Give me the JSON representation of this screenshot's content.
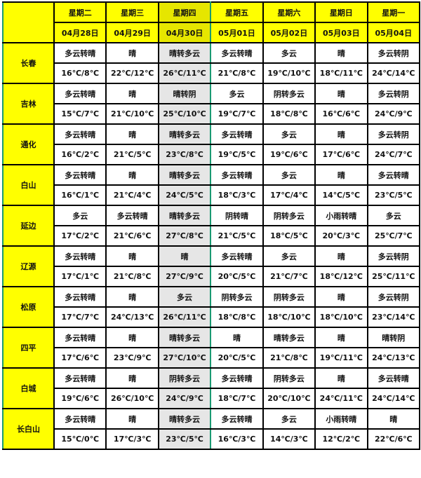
{
  "highlight_color": "#e6e600",
  "weekdays": [
    "星期二",
    "星期三",
    "星期四",
    "星期五",
    "星期六",
    "星期日",
    "星期一"
  ],
  "dates": [
    "04月28日",
    "04月29日",
    "04月30日",
    "05月01日",
    "05月02日",
    "05月03日",
    "05月04日"
  ],
  "highlighted_column": 2,
  "cities": [
    {
      "name": "长春",
      "weather": [
        "多云转晴",
        "晴",
        "晴转多云",
        "多云转晴",
        "多云",
        "晴",
        "多云转阴"
      ],
      "temps": [
        "16℃/8℃",
        "22℃/12℃",
        "26℃/11℃",
        "21℃/8℃",
        "19℃/10℃",
        "18℃/11℃",
        "24℃/14℃"
      ]
    },
    {
      "name": "吉林",
      "weather": [
        "多云转晴",
        "晴",
        "晴转阴",
        "多云",
        "阴转多云",
        "晴",
        "多云转阴"
      ],
      "temps": [
        "15℃/7℃",
        "21℃/10℃",
        "25℃/10℃",
        "19℃/7℃",
        "18℃/8℃",
        "16℃/6℃",
        "24℃/9℃"
      ]
    },
    {
      "name": "通化",
      "weather": [
        "多云转晴",
        "晴",
        "晴转多云",
        "多云转晴",
        "多云",
        "晴",
        "多云转阴"
      ],
      "temps": [
        "16℃/2℃",
        "21℃/5℃",
        "23℃/8℃",
        "19℃/5℃",
        "19℃/6℃",
        "17℃/6℃",
        "24℃/7℃"
      ]
    },
    {
      "name": "白山",
      "weather": [
        "多云转晴",
        "晴",
        "晴转多云",
        "多云转晴",
        "多云",
        "晴",
        "多云转晴"
      ],
      "temps": [
        "16℃/1℃",
        "21℃/4℃",
        "24℃/5℃",
        "18℃/3℃",
        "17℃/4℃",
        "14℃/5℃",
        "23℃/5℃"
      ]
    },
    {
      "name": "延边",
      "weather": [
        "多云",
        "多云转晴",
        "晴转多云",
        "阴转晴",
        "阴转多云",
        "小雨转晴",
        "多云"
      ],
      "temps": [
        "17℃/2℃",
        "21℃/6℃",
        "27℃/8℃",
        "21℃/5℃",
        "18℃/5℃",
        "20℃/3℃",
        "25℃/7℃"
      ]
    },
    {
      "name": "辽源",
      "weather": [
        "多云转晴",
        "晴",
        "晴",
        "多云转晴",
        "多云",
        "晴",
        "多云转阴"
      ],
      "temps": [
        "17℃/1℃",
        "21℃/8℃",
        "27℃/9℃",
        "20℃/5℃",
        "21℃/7℃",
        "18℃/12℃",
        "25℃/11℃"
      ]
    },
    {
      "name": "松原",
      "weather": [
        "多云转晴",
        "晴",
        "多云",
        "阴转多云",
        "阴转多云",
        "晴",
        "多云转阴"
      ],
      "temps": [
        "17℃/7℃",
        "24℃/13℃",
        "26℃/11℃",
        "18℃/8℃",
        "18℃/10℃",
        "18℃/10℃",
        "23℃/14℃"
      ]
    },
    {
      "name": "四平",
      "weather": [
        "多云转晴",
        "晴",
        "晴转多云",
        "晴",
        "晴转多云",
        "晴",
        "晴转阴"
      ],
      "temps": [
        "17℃/6℃",
        "23℃/9℃",
        "27℃/10℃",
        "20℃/5℃",
        "21℃/8℃",
        "19℃/11℃",
        "24℃/13℃"
      ]
    },
    {
      "name": "白城",
      "weather": [
        "多云转晴",
        "晴",
        "阴转多云",
        "多云转晴",
        "阴转多云",
        "晴",
        "多云转晴"
      ],
      "temps": [
        "19℃/6℃",
        "26℃/10℃",
        "24℃/9℃",
        "18℃/7℃",
        "20℃/10℃",
        "24℃/11℃",
        "24℃/14℃"
      ]
    },
    {
      "name": "长白山",
      "weather": [
        "多云转晴",
        "晴",
        "晴转多云",
        "多云转晴",
        "多云",
        "小雨转晴",
        "晴"
      ],
      "temps": [
        "15℃/0℃",
        "17℃/3℃",
        "23℃/5℃",
        "16℃/3℃",
        "14℃/3℃",
        "12℃/2℃",
        "22℃/6℃"
      ]
    }
  ]
}
